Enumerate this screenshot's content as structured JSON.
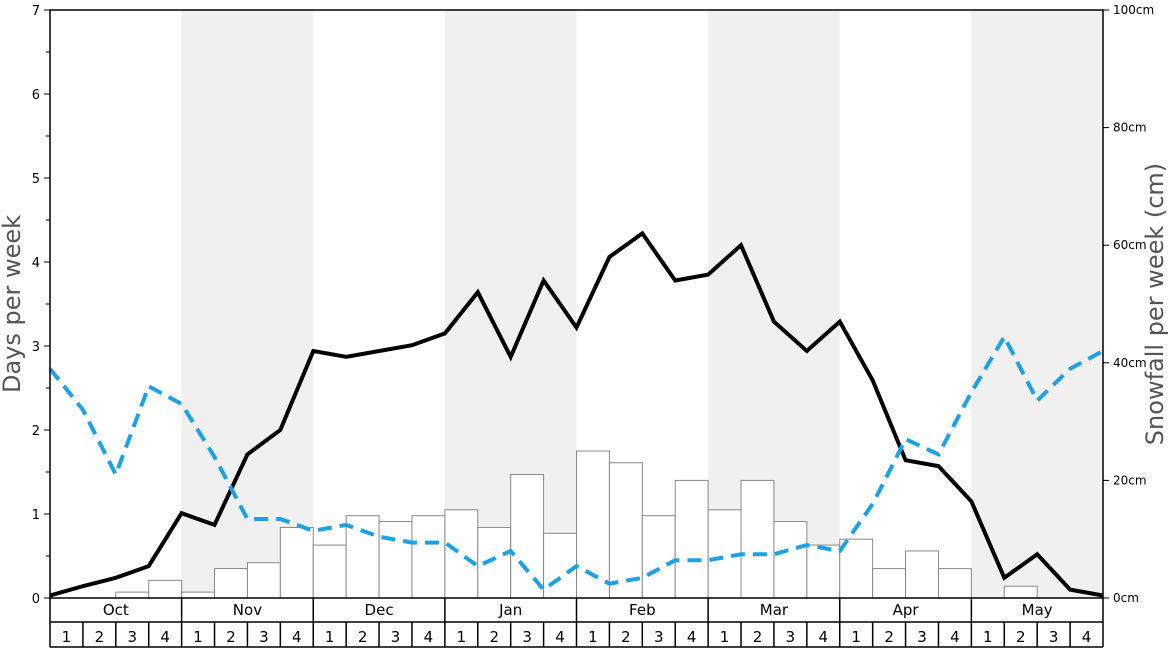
{
  "chart_data": {
    "type": "bar",
    "title": "",
    "ylabel": "Days per week",
    "y2label": "Snowfall per week (cm)",
    "ylim": [
      0,
      7
    ],
    "y2lim": [
      0,
      100
    ],
    "y_ticks": [
      "0",
      "1",
      "2",
      "3",
      "4",
      "5",
      "6",
      "7"
    ],
    "y2_ticks": [
      "0cm",
      "20cm",
      "40cm",
      "60cm",
      "80cm",
      "100cm"
    ],
    "months": [
      "Oct",
      "Nov",
      "Dec",
      "Jan",
      "Feb",
      "Mar",
      "Apr",
      "May"
    ],
    "week_labels": [
      "1",
      "2",
      "3",
      "4"
    ],
    "shaded_months": [
      "Nov",
      "Jan",
      "Mar",
      "May"
    ],
    "series": [
      {
        "kind": "bar",
        "axis": "right",
        "color": "#ffffff",
        "stroke": "#888888",
        "values": [
          0,
          0,
          1,
          3,
          1,
          5,
          6,
          12,
          9,
          14,
          13,
          14,
          15,
          12,
          21,
          11,
          25,
          23,
          14,
          20,
          15,
          20,
          13,
          9,
          10,
          5,
          8,
          5,
          0,
          2,
          0,
          0
        ]
      },
      {
        "kind": "line",
        "axis": "left",
        "color": "#000000",
        "style": "solid",
        "values": [
          0.03,
          0.14,
          0.24,
          0.38,
          1.01,
          0.87,
          1.71,
          2.0,
          2.94,
          2.87,
          2.94,
          3.01,
          3.15,
          3.64,
          2.87,
          3.78,
          3.22,
          4.06,
          4.34,
          3.78,
          3.85,
          4.2,
          3.29,
          2.94,
          3.29,
          2.59,
          1.64,
          1.57,
          1.15,
          0.24,
          0.52,
          0.1,
          0.03
        ]
      },
      {
        "kind": "line",
        "axis": "left",
        "color": "#1da1e6",
        "style": "dashed",
        "values": [
          2.73,
          2.24,
          1.47,
          2.52,
          2.31,
          1.68,
          0.94,
          0.94,
          0.8,
          0.87,
          0.73,
          0.66,
          0.66,
          0.38,
          0.56,
          0.1,
          0.38,
          0.17,
          0.24,
          0.45,
          0.45,
          0.52,
          0.52,
          0.63,
          0.56,
          1.12,
          1.89,
          1.71,
          2.45,
          3.11,
          2.35,
          2.73,
          2.94
        ]
      }
    ]
  }
}
